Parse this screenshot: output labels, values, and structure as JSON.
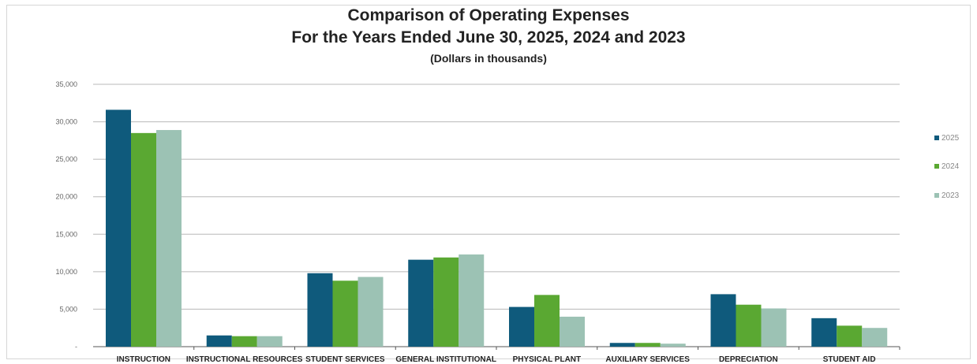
{
  "chart_data": {
    "type": "bar",
    "title_lines": [
      "Comparison of Operating Expenses",
      "For the Years Ended June 30, 2025, 2024 and 2023"
    ],
    "subtitle": "(Dollars in thousands)",
    "xlabel": "",
    "ylabel": "",
    "ylim": [
      0,
      35000
    ],
    "yticks": [
      0,
      5000,
      10000,
      15000,
      20000,
      25000,
      30000,
      35000
    ],
    "ytick_labels": [
      "-",
      "5,000",
      "10,000",
      "15,000",
      "20,000",
      "25,000",
      "30,000",
      "35,000"
    ],
    "grid": true,
    "legend_position": "right",
    "categories": [
      "INSTRUCTION",
      "INSTRUCTIONAL RESOURCES",
      "STUDENT SERVICES",
      "GENERAL INSTITUTIONAL",
      "PHYSICAL PLANT",
      "AUXILIARY SERVICES",
      "DEPRECIATION",
      "STUDENT AID"
    ],
    "series": [
      {
        "name": "2025",
        "color": "#0f5a7c",
        "values": [
          31600,
          1500,
          9800,
          11600,
          5300,
          500,
          7000,
          3800
        ]
      },
      {
        "name": "2024",
        "color": "#5aa832",
        "values": [
          28500,
          1400,
          8800,
          11900,
          6900,
          500,
          5600,
          2800
        ]
      },
      {
        "name": "2023",
        "color": "#9cc2b4",
        "values": [
          28900,
          1400,
          9300,
          12300,
          4000,
          400,
          5100,
          2500
        ]
      }
    ]
  }
}
